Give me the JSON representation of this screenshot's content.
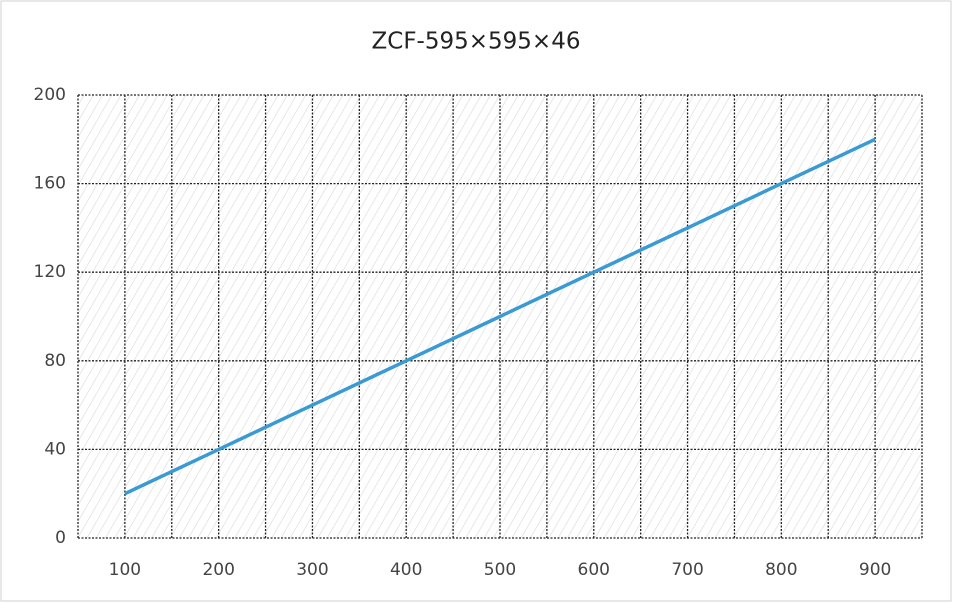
{
  "chart_data": {
    "type": "line",
    "title": "ZCF-595×595×46",
    "x": [
      100,
      200,
      300,
      400,
      500,
      600,
      700,
      800,
      900
    ],
    "series": [
      {
        "color": "#3a9ad3",
        "values": [
          20,
          40,
          60,
          80,
          100,
          120,
          140,
          160,
          180
        ]
      }
    ],
    "xlim": [
      50,
      950
    ],
    "xticks": [
      100,
      200,
      300,
      400,
      500,
      600,
      700,
      800,
      900
    ],
    "xgridlines": [
      50,
      100,
      150,
      200,
      250,
      300,
      350,
      400,
      450,
      500,
      550,
      600,
      650,
      700,
      750,
      800,
      850,
      900,
      950
    ],
    "ylim": [
      0,
      200
    ],
    "yticks": [
      0,
      40,
      80,
      120,
      160,
      200
    ],
    "grid": true
  }
}
